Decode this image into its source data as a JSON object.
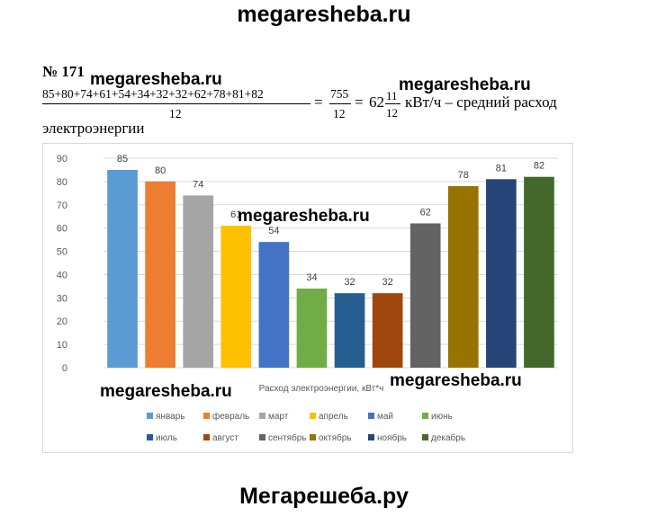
{
  "header": {
    "site": "megaresheba.ru"
  },
  "watermarks": [
    "megaresheba.ru",
    "megaresheba.ru",
    "megaresheba.ru",
    "megaresheba.ru",
    "megaresheba.ru"
  ],
  "footer": {
    "site": "Мегарешеба.ру"
  },
  "problem": {
    "number": "№ 171",
    "sum_expression": "85+80+74+61+54+34+32+32+62+78+81+82",
    "divisor": "12",
    "eq1": "=",
    "result_numerator": "755",
    "result_denominator": "12",
    "eq2": "=",
    "whole": "62",
    "frac_num": "11",
    "frac_den": "12",
    "unit_text": "кВт/ч – средний расход",
    "continuation": "электроэнергии"
  },
  "chart_data": {
    "type": "bar",
    "title": "",
    "xlabel": "Расход электроэнергии, кВт*ч",
    "ylabel": "",
    "ylim": [
      0,
      90
    ],
    "yticks": [
      0,
      10,
      20,
      30,
      40,
      50,
      60,
      70,
      80,
      90
    ],
    "grid": true,
    "legend_position": "bottom",
    "series": [
      {
        "name": "январь",
        "value": 85,
        "color": "#5B9BD5"
      },
      {
        "name": "февраль",
        "value": 80,
        "color": "#ED7D31"
      },
      {
        "name": "март",
        "value": 74,
        "color": "#A5A5A5"
      },
      {
        "name": "апрель",
        "value": 61,
        "color": "#FFC000"
      },
      {
        "name": "май",
        "value": 54,
        "color": "#4472C4"
      },
      {
        "name": "июнь",
        "value": 34,
        "color": "#70AD47"
      },
      {
        "name": "июль",
        "value": 32,
        "color": "#255E91"
      },
      {
        "name": "август",
        "value": 32,
        "color": "#9E480E"
      },
      {
        "name": "сентябрь",
        "value": 62,
        "color": "#636363"
      },
      {
        "name": "октябрь",
        "value": 78,
        "color": "#997300"
      },
      {
        "name": "ноябрь",
        "value": 81,
        "color": "#264478"
      },
      {
        "name": "декабрь",
        "value": 82,
        "color": "#43682B"
      }
    ]
  }
}
